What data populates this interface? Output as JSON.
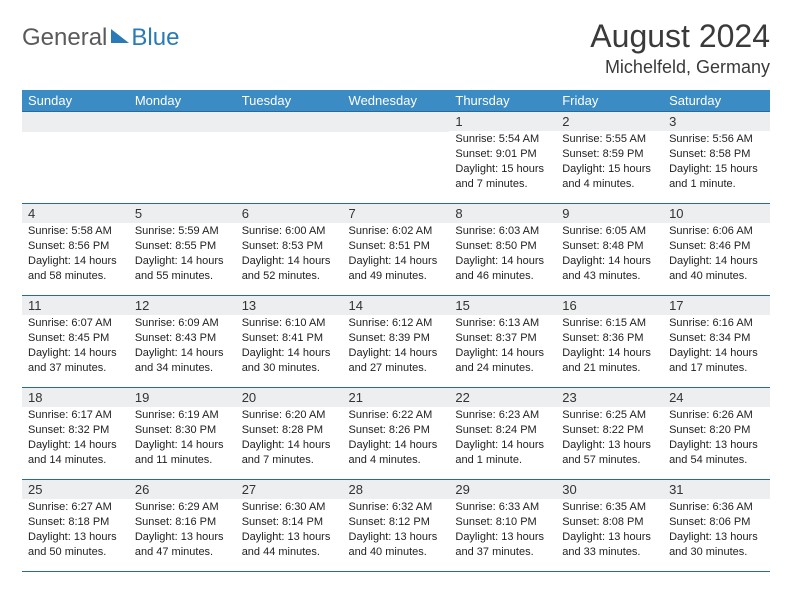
{
  "logo": {
    "text1": "General",
    "text2": "Blue"
  },
  "title": "August 2024",
  "location": "Michelfeld, Germany",
  "colors": {
    "header_bg": "#3b8bc4",
    "header_text": "#ffffff",
    "border": "#2a6a9a",
    "daynum_bg": "#eceeef",
    "text": "#222222",
    "logo_gray": "#5a5a5a",
    "logo_blue": "#2a7ab8",
    "background": "#ffffff"
  },
  "fonts": {
    "family": "Arial",
    "title_size": 32,
    "location_size": 18,
    "header_size": 13,
    "daynum_size": 13,
    "data_size": 11
  },
  "weekdays": [
    "Sunday",
    "Monday",
    "Tuesday",
    "Wednesday",
    "Thursday",
    "Friday",
    "Saturday"
  ],
  "grid": [
    [
      {
        "empty": true
      },
      {
        "empty": true
      },
      {
        "empty": true
      },
      {
        "empty": true
      },
      {
        "day": "1",
        "sunrise": "Sunrise: 5:54 AM",
        "sunset": "Sunset: 9:01 PM",
        "daylight": "Daylight: 15 hours and 7 minutes."
      },
      {
        "day": "2",
        "sunrise": "Sunrise: 5:55 AM",
        "sunset": "Sunset: 8:59 PM",
        "daylight": "Daylight: 15 hours and 4 minutes."
      },
      {
        "day": "3",
        "sunrise": "Sunrise: 5:56 AM",
        "sunset": "Sunset: 8:58 PM",
        "daylight": "Daylight: 15 hours and 1 minute."
      }
    ],
    [
      {
        "day": "4",
        "sunrise": "Sunrise: 5:58 AM",
        "sunset": "Sunset: 8:56 PM",
        "daylight": "Daylight: 14 hours and 58 minutes."
      },
      {
        "day": "5",
        "sunrise": "Sunrise: 5:59 AM",
        "sunset": "Sunset: 8:55 PM",
        "daylight": "Daylight: 14 hours and 55 minutes."
      },
      {
        "day": "6",
        "sunrise": "Sunrise: 6:00 AM",
        "sunset": "Sunset: 8:53 PM",
        "daylight": "Daylight: 14 hours and 52 minutes."
      },
      {
        "day": "7",
        "sunrise": "Sunrise: 6:02 AM",
        "sunset": "Sunset: 8:51 PM",
        "daylight": "Daylight: 14 hours and 49 minutes."
      },
      {
        "day": "8",
        "sunrise": "Sunrise: 6:03 AM",
        "sunset": "Sunset: 8:50 PM",
        "daylight": "Daylight: 14 hours and 46 minutes."
      },
      {
        "day": "9",
        "sunrise": "Sunrise: 6:05 AM",
        "sunset": "Sunset: 8:48 PM",
        "daylight": "Daylight: 14 hours and 43 minutes."
      },
      {
        "day": "10",
        "sunrise": "Sunrise: 6:06 AM",
        "sunset": "Sunset: 8:46 PM",
        "daylight": "Daylight: 14 hours and 40 minutes."
      }
    ],
    [
      {
        "day": "11",
        "sunrise": "Sunrise: 6:07 AM",
        "sunset": "Sunset: 8:45 PM",
        "daylight": "Daylight: 14 hours and 37 minutes."
      },
      {
        "day": "12",
        "sunrise": "Sunrise: 6:09 AM",
        "sunset": "Sunset: 8:43 PM",
        "daylight": "Daylight: 14 hours and 34 minutes."
      },
      {
        "day": "13",
        "sunrise": "Sunrise: 6:10 AM",
        "sunset": "Sunset: 8:41 PM",
        "daylight": "Daylight: 14 hours and 30 minutes."
      },
      {
        "day": "14",
        "sunrise": "Sunrise: 6:12 AM",
        "sunset": "Sunset: 8:39 PM",
        "daylight": "Daylight: 14 hours and 27 minutes."
      },
      {
        "day": "15",
        "sunrise": "Sunrise: 6:13 AM",
        "sunset": "Sunset: 8:37 PM",
        "daylight": "Daylight: 14 hours and 24 minutes."
      },
      {
        "day": "16",
        "sunrise": "Sunrise: 6:15 AM",
        "sunset": "Sunset: 8:36 PM",
        "daylight": "Daylight: 14 hours and 21 minutes."
      },
      {
        "day": "17",
        "sunrise": "Sunrise: 6:16 AM",
        "sunset": "Sunset: 8:34 PM",
        "daylight": "Daylight: 14 hours and 17 minutes."
      }
    ],
    [
      {
        "day": "18",
        "sunrise": "Sunrise: 6:17 AM",
        "sunset": "Sunset: 8:32 PM",
        "daylight": "Daylight: 14 hours and 14 minutes."
      },
      {
        "day": "19",
        "sunrise": "Sunrise: 6:19 AM",
        "sunset": "Sunset: 8:30 PM",
        "daylight": "Daylight: 14 hours and 11 minutes."
      },
      {
        "day": "20",
        "sunrise": "Sunrise: 6:20 AM",
        "sunset": "Sunset: 8:28 PM",
        "daylight": "Daylight: 14 hours and 7 minutes."
      },
      {
        "day": "21",
        "sunrise": "Sunrise: 6:22 AM",
        "sunset": "Sunset: 8:26 PM",
        "daylight": "Daylight: 14 hours and 4 minutes."
      },
      {
        "day": "22",
        "sunrise": "Sunrise: 6:23 AM",
        "sunset": "Sunset: 8:24 PM",
        "daylight": "Daylight: 14 hours and 1 minute."
      },
      {
        "day": "23",
        "sunrise": "Sunrise: 6:25 AM",
        "sunset": "Sunset: 8:22 PM",
        "daylight": "Daylight: 13 hours and 57 minutes."
      },
      {
        "day": "24",
        "sunrise": "Sunrise: 6:26 AM",
        "sunset": "Sunset: 8:20 PM",
        "daylight": "Daylight: 13 hours and 54 minutes."
      }
    ],
    [
      {
        "day": "25",
        "sunrise": "Sunrise: 6:27 AM",
        "sunset": "Sunset: 8:18 PM",
        "daylight": "Daylight: 13 hours and 50 minutes."
      },
      {
        "day": "26",
        "sunrise": "Sunrise: 6:29 AM",
        "sunset": "Sunset: 8:16 PM",
        "daylight": "Daylight: 13 hours and 47 minutes."
      },
      {
        "day": "27",
        "sunrise": "Sunrise: 6:30 AM",
        "sunset": "Sunset: 8:14 PM",
        "daylight": "Daylight: 13 hours and 44 minutes."
      },
      {
        "day": "28",
        "sunrise": "Sunrise: 6:32 AM",
        "sunset": "Sunset: 8:12 PM",
        "daylight": "Daylight: 13 hours and 40 minutes."
      },
      {
        "day": "29",
        "sunrise": "Sunrise: 6:33 AM",
        "sunset": "Sunset: 8:10 PM",
        "daylight": "Daylight: 13 hours and 37 minutes."
      },
      {
        "day": "30",
        "sunrise": "Sunrise: 6:35 AM",
        "sunset": "Sunset: 8:08 PM",
        "daylight": "Daylight: 13 hours and 33 minutes."
      },
      {
        "day": "31",
        "sunrise": "Sunrise: 6:36 AM",
        "sunset": "Sunset: 8:06 PM",
        "daylight": "Daylight: 13 hours and 30 minutes."
      }
    ]
  ]
}
